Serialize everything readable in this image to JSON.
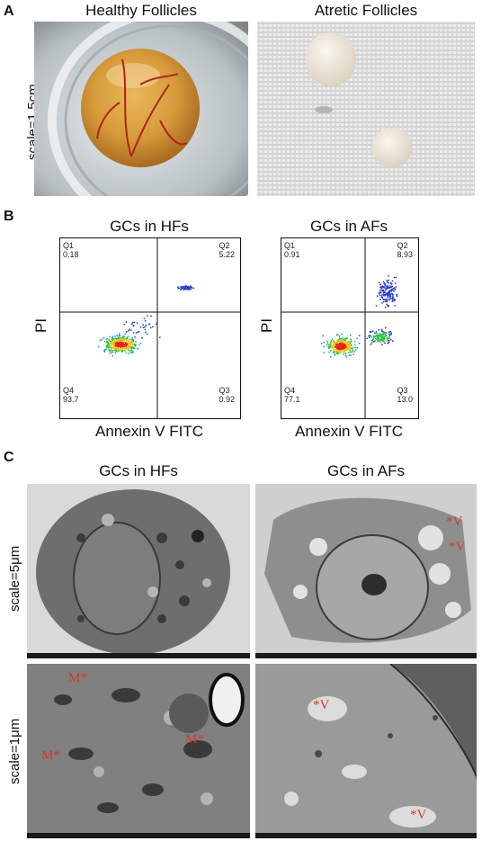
{
  "panel_a": {
    "letter": "A",
    "scale_label": "scale=1.5cm",
    "left_title": "Healthy Follicles",
    "right_title": "Atretic Follicles"
  },
  "panel_b": {
    "letter": "B",
    "left": {
      "title": "GCs in HFs",
      "q1_label": "Q1",
      "q1_value": "0.18",
      "q2_label": "Q2",
      "q2_value": "5.22",
      "q3_label": "Q3",
      "q3_value": "0.92",
      "q4_label": "Q4",
      "q4_value": "93.7",
      "x_axis": "Annexin V FITC",
      "y_axis": "PI"
    },
    "right": {
      "title": "GCs in AFs",
      "q1_label": "Q1",
      "q1_value": "0.91",
      "q2_label": "Q2",
      "q2_value": "8.93",
      "q3_label": "Q3",
      "q3_value": "13.0",
      "q4_label": "Q4",
      "q4_value": "77.1",
      "x_axis": "Annexin V FITC",
      "y_axis": "PI"
    }
  },
  "panel_c": {
    "letter": "C",
    "left_title": "GCs in HFs",
    "right_title": "GCs in AFs",
    "scale_top": "scale=5μm",
    "scale_bottom": "scale=1μm",
    "mark_m": "M*",
    "mark_v_top": "*V",
    "mark_v_bottom": "*V"
  },
  "colors": {
    "mark": "#d23a2a"
  }
}
